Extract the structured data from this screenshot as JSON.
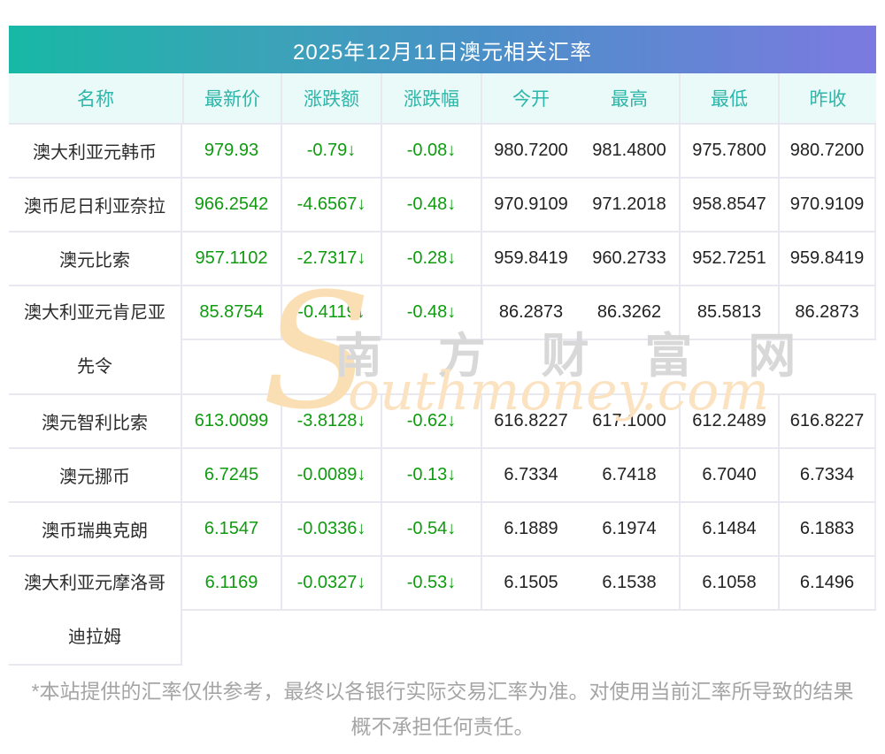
{
  "title": "2025年12月11日澳元相关汇率",
  "table": {
    "columns": [
      "名称",
      "最新价",
      "涨跌额",
      "涨跌幅",
      "今开",
      "最高",
      "最低",
      "昨收"
    ],
    "rows": [
      {
        "name": "澳大利亚元韩币",
        "name2": "",
        "latest": "979.93",
        "change": "-0.79↓",
        "pct": "-0.08↓",
        "open": "980.7200",
        "high": "981.4800",
        "low": "975.7800",
        "prev": "980.7200"
      },
      {
        "name": "澳币尼日利亚奈拉",
        "name2": "",
        "latest": "966.2542",
        "change": "-4.6567↓",
        "pct": "-0.48↓",
        "open": "970.9109",
        "high": "971.2018",
        "low": "958.8547",
        "prev": "970.9109"
      },
      {
        "name": "澳元比索",
        "name2": "",
        "latest": "957.1102",
        "change": "-2.7317↓",
        "pct": "-0.28↓",
        "open": "959.8419",
        "high": "960.2733",
        "low": "952.7251",
        "prev": "959.8419"
      },
      {
        "name": "澳大利亚元肯尼亚",
        "name2": "先令",
        "latest": "85.8754",
        "change": "-0.4119↓",
        "pct": "-0.48↓",
        "open": "86.2873",
        "high": "86.3262",
        "low": "85.5813",
        "prev": "86.2873"
      },
      {
        "name": "澳元智利比索",
        "name2": "",
        "latest": "613.0099",
        "change": "-3.8128↓",
        "pct": "-0.62↓",
        "open": "616.8227",
        "high": "617.1000",
        "low": "612.2489",
        "prev": "616.8227"
      },
      {
        "name": "澳元挪币",
        "name2": "",
        "latest": "6.7245",
        "change": "-0.0089↓",
        "pct": "-0.13↓",
        "open": "6.7334",
        "high": "6.7418",
        "low": "6.7040",
        "prev": "6.7334"
      },
      {
        "name": "澳币瑞典克朗",
        "name2": "",
        "latest": "6.1547",
        "change": "-0.0336↓",
        "pct": "-0.54↓",
        "open": "6.1889",
        "high": "6.1974",
        "low": "6.1484",
        "prev": "6.1883"
      },
      {
        "name": "澳大利亚元摩洛哥",
        "name2": "迪拉姆",
        "latest": "6.1169",
        "change": "-0.0327↓",
        "pct": "-0.53↓",
        "open": "6.1505",
        "high": "6.1538",
        "low": "6.1058",
        "prev": "6.1496"
      }
    ]
  },
  "watermark": {
    "s": "S",
    "cn": "南 方 财 富 网",
    "en": "outhmoney.com"
  },
  "footer": {
    "line1": "*本站提供的汇率仅供参考，最终以各银行实际交易汇率为准。对使用当前汇率所导致的结果",
    "line2": "概不承担任何责任。"
  },
  "colors": {
    "gradient_left": "#17b8a5",
    "gradient_mid": "#4a90c8",
    "gradient_right": "#7c7ae0",
    "header_bg": "#e9faf8",
    "header_text": "#2db6a9",
    "down_green": "#0f9b0f",
    "value_text": "#222222",
    "border": "#e8e8f0",
    "footer_text": "#a5a5a5"
  }
}
